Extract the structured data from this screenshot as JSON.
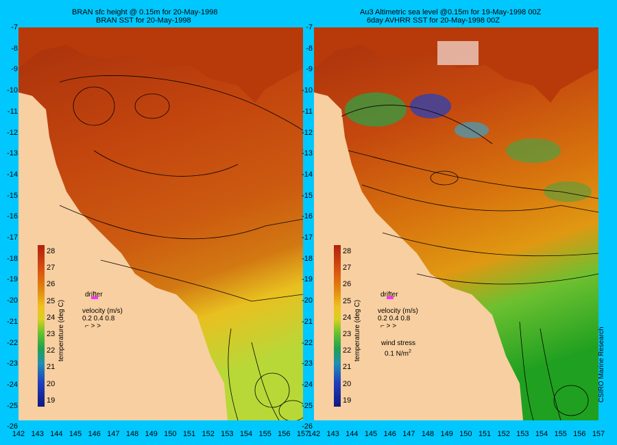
{
  "left_panel": {
    "title_line1": "BRAN sfc height @ 0.15m  for 20-May-1998",
    "title_line2": "BRAN SST for 20-May-1998"
  },
  "right_panel": {
    "title_line1": "Au3 Altimetric sea level  @0.15m  for 19-May-1998 00Z",
    "title_line2": "6day AVHRR SST for 20-May-1998 00Z"
  },
  "axes": {
    "lat_ticks": [
      "-7",
      "-8",
      "-9",
      "-10",
      "-11",
      "-12",
      "-13",
      "-14",
      "-15",
      "-16",
      "-17",
      "-18",
      "-19",
      "-20",
      "-21",
      "-22",
      "-23",
      "-24",
      "-25",
      "-26"
    ],
    "lon_ticks": [
      "142",
      "143",
      "144",
      "145",
      "146",
      "147",
      "148",
      "149",
      "150",
      "151",
      "152",
      "153",
      "154",
      "155",
      "156",
      "157"
    ]
  },
  "colorbar": {
    "title": "temperature (deg C)",
    "ticks": [
      "28",
      "27",
      "26",
      "25",
      "24",
      "23",
      "22",
      "21",
      "20",
      "19"
    ]
  },
  "legend": {
    "drifter": "drifter",
    "velocity_label": "velocity (m/s)",
    "velocity_scale": "0.2 0.4 0.8",
    "wind_label": "wind stress",
    "wind_value": "0.1 N/m",
    "wind_exp": "2"
  },
  "credit": "CSIRO Marine Research",
  "colors": {
    "background": "#00c8ff",
    "land": "#f8cfa0",
    "warm_sea": "#b83a0a",
    "drifter": "#ff30ff"
  }
}
